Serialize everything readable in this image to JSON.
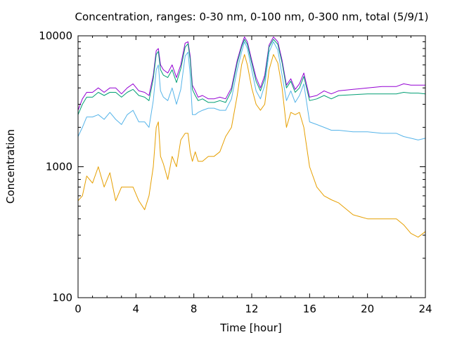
{
  "chart_data": {
    "type": "line",
    "title": "Concentration, ranges: 0-30 nm, 0-100 nm, 0-300 nm, total (5/9/1)",
    "xlabel": "Time [hour]",
    "ylabel": "Concentration",
    "xlim": [
      0,
      24
    ],
    "ylim": [
      100,
      10000
    ],
    "yscale": "log",
    "grid": false,
    "x_ticks": [
      0,
      4,
      8,
      12,
      16,
      20,
      24
    ],
    "x_tick_labels": [
      "0",
      "4",
      "8",
      "12",
      "16",
      "20",
      "24"
    ],
    "y_ticks": [
      100,
      1000,
      10000
    ],
    "y_tick_labels": [
      "100",
      "1000",
      "10000"
    ],
    "x": [
      0,
      0.3,
      0.6,
      1,
      1.4,
      1.8,
      2.2,
      2.6,
      3,
      3.4,
      3.8,
      4.2,
      4.6,
      4.9,
      5.2,
      5.4,
      5.55,
      5.7,
      5.9,
      6.2,
      6.5,
      6.8,
      7.1,
      7.4,
      7.6,
      7.75,
      7.9,
      8.1,
      8.3,
      8.6,
      9,
      9.4,
      9.8,
      10.2,
      10.6,
      11,
      11.3,
      11.5,
      11.7,
      12,
      12.3,
      12.6,
      12.9,
      13.2,
      13.5,
      13.8,
      14.1,
      14.4,
      14.7,
      15,
      15.3,
      15.6,
      16,
      16.5,
      17,
      17.5,
      18,
      19,
      20,
      21,
      22,
      22.5,
      23,
      23.5,
      24
    ],
    "series": [
      {
        "color": "#9400d3",
        "values": [
          2700,
          3300,
          3700,
          3700,
          4000,
          3700,
          4000,
          4000,
          3600,
          4000,
          4300,
          3800,
          3700,
          3500,
          5000,
          7700,
          8000,
          6000,
          5500,
          5200,
          6000,
          4800,
          6000,
          8800,
          9000,
          7000,
          4200,
          3800,
          3400,
          3500,
          3300,
          3300,
          3400,
          3300,
          4000,
          6500,
          8500,
          9800,
          9000,
          6500,
          4800,
          4000,
          5000,
          8500,
          9800,
          9000,
          6500,
          4200,
          4700,
          3900,
          4300,
          5200,
          3400,
          3500,
          3800,
          3600,
          3800,
          3900,
          4000,
          4100,
          4100,
          4300,
          4200,
          4200,
          4200
        ]
      },
      {
        "color": "#009e73",
        "values": [
          2500,
          3000,
          3400,
          3400,
          3700,
          3500,
          3700,
          3700,
          3400,
          3700,
          3900,
          3500,
          3400,
          3200,
          4700,
          7200,
          7600,
          5500,
          5000,
          4800,
          5500,
          4400,
          5600,
          8200,
          8700,
          6600,
          3900,
          3500,
          3200,
          3300,
          3100,
          3100,
          3200,
          3100,
          3800,
          6200,
          8200,
          9400,
          8600,
          6200,
          4500,
          3800,
          4700,
          8200,
          9400,
          8600,
          6200,
          4000,
          4500,
          3700,
          4000,
          4900,
          3200,
          3300,
          3500,
          3300,
          3500,
          3550,
          3600,
          3600,
          3600,
          3700,
          3650,
          3650,
          3600
        ]
      },
      {
        "color": "#56b4e9",
        "values": [
          1700,
          2000,
          2400,
          2400,
          2500,
          2300,
          2600,
          2300,
          2100,
          2500,
          2700,
          2200,
          2200,
          2000,
          3200,
          5500,
          6000,
          3800,
          3400,
          3200,
          4000,
          3000,
          3900,
          7000,
          7500,
          5000,
          2500,
          2500,
          2600,
          2700,
          2800,
          2800,
          2700,
          2700,
          3300,
          5500,
          7500,
          9000,
          8000,
          5500,
          3800,
          3300,
          4200,
          7500,
          9000,
          7800,
          5000,
          3200,
          3800,
          3100,
          3500,
          4300,
          2200,
          2100,
          2000,
          1900,
          1900,
          1850,
          1850,
          1800,
          1800,
          1700,
          1650,
          1600,
          1650
        ]
      },
      {
        "color": "#e69f00",
        "values": [
          550,
          600,
          850,
          750,
          1000,
          700,
          900,
          550,
          700,
          700,
          700,
          550,
          470,
          600,
          1000,
          2000,
          2200,
          1200,
          1050,
          800,
          1200,
          1000,
          1600,
          1800,
          1800,
          1300,
          1100,
          1300,
          1100,
          1100,
          1200,
          1200,
          1300,
          1700,
          2000,
          3500,
          6000,
          7200,
          6000,
          4000,
          3000,
          2700,
          3000,
          5500,
          7200,
          6200,
          4000,
          2000,
          2600,
          2500,
          2600,
          2000,
          1000,
          700,
          600,
          560,
          530,
          430,
          400,
          400,
          400,
          360,
          310,
          290,
          320
        ]
      }
    ]
  }
}
